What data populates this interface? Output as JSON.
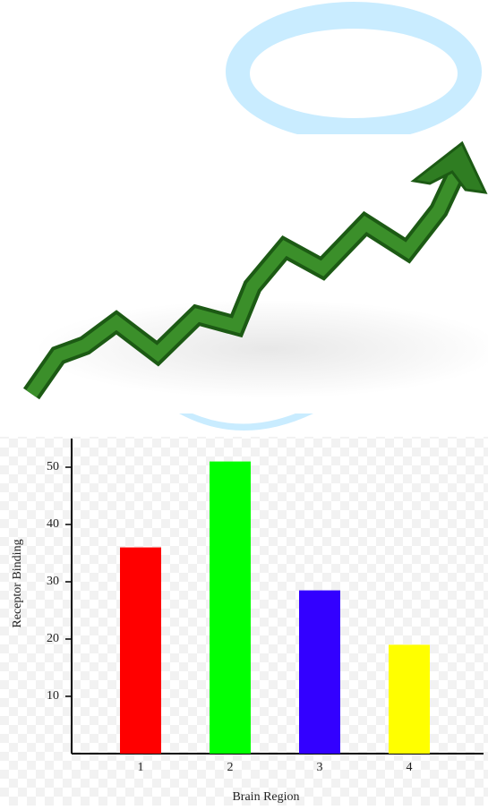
{
  "chart_data": {
    "type": "bar",
    "categories": [
      "1",
      "2",
      "3",
      "4"
    ],
    "values": [
      36,
      51,
      28.5,
      19
    ],
    "colors": [
      "#ff0000",
      "#00ff00",
      "#3300ff",
      "#ffff00"
    ],
    "xlabel": "Brain Region",
    "ylabel": "Receptor Binding",
    "ylim": [
      0,
      55
    ],
    "yticks": [
      10,
      20,
      30,
      40,
      50
    ]
  }
}
